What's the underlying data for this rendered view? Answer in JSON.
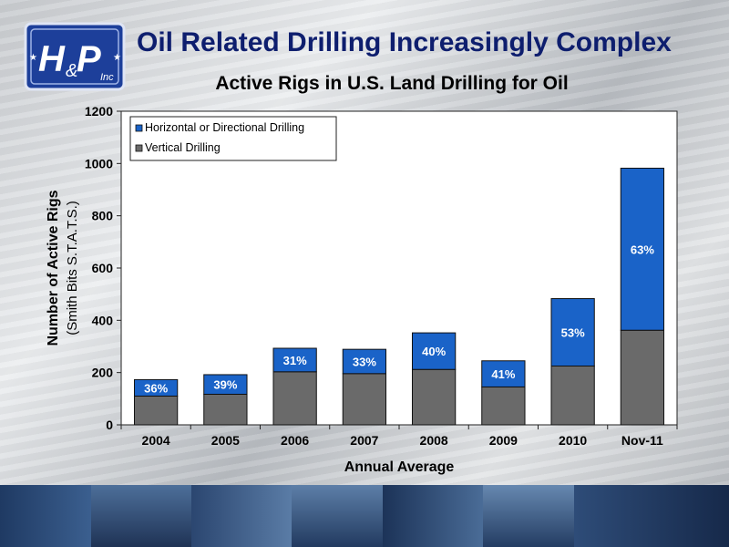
{
  "slide": {
    "title": "Oil Related Drilling Increasingly Complex",
    "logo_text": "H&P",
    "logo_script": "&",
    "logo_sub": "Inc"
  },
  "colors": {
    "horizontal": "#1a63c8",
    "vertical": "#6a6a6a",
    "title": "#0e1e6e"
  },
  "chart_data": {
    "type": "bar",
    "stacked": true,
    "title": "Active Rigs in U.S. Land Drilling for Oil",
    "xlabel": "Annual Average",
    "ylabel": "Number of Active Rigs",
    "ylabel_sub": "(Smith Bits S.T.A.T.S.)",
    "ylim": [
      0,
      1200
    ],
    "yticks": [
      "0",
      "200",
      "400",
      "600",
      "800",
      "1000",
      "1200"
    ],
    "ytick_values": [
      0,
      200,
      400,
      600,
      800,
      1000,
      1200
    ],
    "categories": [
      "2004",
      "2005",
      "2006",
      "2007",
      "2008",
      "2009",
      "2010",
      "Nov-11"
    ],
    "series": [
      {
        "name": "Vertical Drilling",
        "values": [
          110,
          117,
          203,
          196,
          212,
          145,
          225,
          362
        ]
      },
      {
        "name": "Horizontal or Directional Drilling",
        "values": [
          63,
          75,
          90,
          93,
          140,
          100,
          258,
          620
        ]
      }
    ],
    "data_labels": [
      "36%",
      "39%",
      "31%",
      "33%",
      "40%",
      "41%",
      "53%",
      "63%"
    ],
    "legend_position": "top-left",
    "grid": false
  }
}
